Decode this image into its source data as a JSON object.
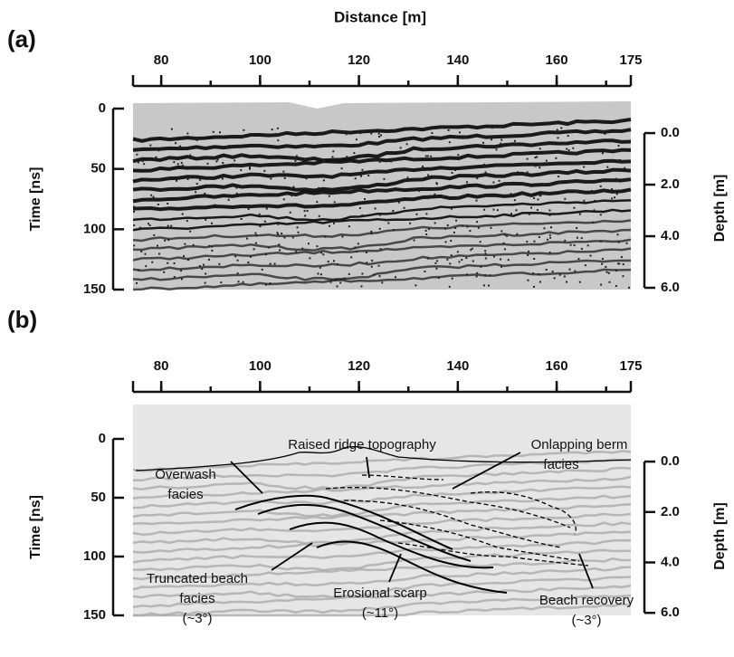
{
  "xlabel": "Distance [m]",
  "panels": [
    {
      "label": "(a)",
      "ylabel": "Time [ns]",
      "y2label": "Depth [m]",
      "xlim": [
        74.3,
        175
      ],
      "xticks": [
        80,
        100,
        120,
        140,
        160,
        175
      ],
      "ylim": [
        0,
        150
      ],
      "yticks": [
        0,
        50,
        100,
        150
      ],
      "y2lim": [
        -0.95,
        6.07
      ],
      "y2ticks": [
        {
          "value": 0,
          "label": "0.0"
        },
        {
          "value": 2,
          "label": "2.0"
        },
        {
          "value": 4,
          "label": "4.0"
        },
        {
          "value": 6,
          "label": "6.0"
        }
      ]
    },
    {
      "label": "(b)",
      "ylabel": "Time [ns]",
      "y2label": "Depth [m]",
      "xlim": [
        74.3,
        175
      ],
      "xticks": [
        80,
        100,
        120,
        140,
        160,
        175
      ],
      "ylim": [
        0,
        150
      ],
      "yticks": [
        0,
        50,
        100,
        150
      ],
      "y2lim": [
        -0.9,
        6.1
      ],
      "y2ticks": [
        {
          "value": 0,
          "label": "0.0"
        },
        {
          "value": 2,
          "label": "2.0"
        },
        {
          "value": 4,
          "label": "4.0"
        },
        {
          "value": 6,
          "label": "6.0"
        }
      ],
      "annotations": [
        {
          "lines": [
            "Overwash",
            "facies"
          ]
        },
        {
          "lines": [
            "Raised ridge topography"
          ]
        },
        {
          "lines": [
            "Onlapping berm",
            "facies"
          ]
        },
        {
          "lines": [
            "Truncated beach",
            "facies",
            "(~3°)"
          ]
        },
        {
          "lines": [
            "Erosional scarp",
            "(~11°)"
          ]
        },
        {
          "lines": [
            "Beach recovery",
            "(~3°)"
          ]
        }
      ]
    }
  ]
}
